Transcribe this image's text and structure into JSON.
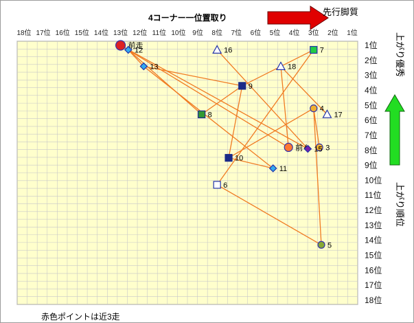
{
  "chart_data": {
    "type": "scatter",
    "title": "4コーナー一位置取り",
    "top_right_label": "先行脚質",
    "right_label_top": "上がり優秀",
    "right_label_bottom": "上がり順位",
    "footnote": "赤色ポイントは近3走",
    "x_ticks": [
      "18位",
      "17位",
      "16位",
      "15位",
      "14位",
      "13位",
      "12位",
      "11位",
      "10位",
      "9位",
      "8位",
      "7位",
      "6位",
      "5位",
      "4位",
      "3位",
      "2位",
      "1位"
    ],
    "y_ticks": [
      "1位",
      "2位",
      "3位",
      "4位",
      "5位",
      "6位",
      "7位",
      "8位",
      "9位",
      "10位",
      "11位",
      "12位",
      "13位",
      "14位",
      "15位",
      "16位",
      "17位",
      "18位"
    ],
    "xlim": [
      18,
      1
    ],
    "ylim": [
      1,
      18
    ],
    "grid": true,
    "points": [
      {
        "label": "前走",
        "x": 13.0,
        "y": 1.0,
        "shape": "circle",
        "fill": "#dd2222",
        "stroke": "#3333aa",
        "size": 7,
        "near3": true
      },
      {
        "label": "前々",
        "x": 4.3,
        "y": 7.8,
        "shape": "circle",
        "fill": "#ff7733",
        "stroke": "#3333aa",
        "size": 6,
        "near3": true
      },
      {
        "label": "3",
        "x": 2.7,
        "y": 7.8,
        "shape": "circle",
        "fill": "#f0b030",
        "stroke": "#3333aa",
        "size": 5
      },
      {
        "label": "4",
        "x": 3.0,
        "y": 5.2,
        "shape": "circle",
        "fill": "#f0b030",
        "stroke": "#3333aa",
        "size": 5
      },
      {
        "label": "5",
        "x": 2.6,
        "y": 14.3,
        "shape": "circle",
        "fill": "#88aa33",
        "stroke": "#3333aa",
        "size": 5
      },
      {
        "label": "6",
        "x": 8.0,
        "y": 10.3,
        "shape": "square",
        "fill": "#ffffff",
        "stroke": "#2233aa",
        "size": 5
      },
      {
        "label": "7",
        "x": 3.0,
        "y": 1.3,
        "shape": "square",
        "fill": "#22cc44",
        "stroke": "#2233aa",
        "size": 5
      },
      {
        "label": "8",
        "x": 8.8,
        "y": 5.6,
        "shape": "square",
        "fill": "#339933",
        "stroke": "#1a2a88",
        "size": 5
      },
      {
        "label": "9",
        "x": 6.7,
        "y": 3.7,
        "shape": "square",
        "fill": "#1a2a88",
        "stroke": "#1a2a88",
        "size": 5
      },
      {
        "label": "10",
        "x": 7.4,
        "y": 8.5,
        "shape": "square",
        "fill": "#1a2a88",
        "stroke": "#1a2a88",
        "size": 5
      },
      {
        "label": "11",
        "x": 5.1,
        "y": 9.2,
        "shape": "diamond",
        "fill": "#33aaee",
        "stroke": "#2233aa",
        "size": 5
      },
      {
        "label": "12",
        "x": 12.6,
        "y": 1.3,
        "shape": "diamond",
        "fill": "#33aaee",
        "stroke": "#2233aa",
        "size": 5
      },
      {
        "label": "13",
        "x": 11.8,
        "y": 2.4,
        "shape": "diamond",
        "fill": "#33aaee",
        "stroke": "#2233aa",
        "size": 5
      },
      {
        "label": "15",
        "x": 3.3,
        "y": 7.9,
        "shape": "diamond",
        "fill": "#7722aa",
        "stroke": "#2233aa",
        "size": 5
      },
      {
        "label": "16",
        "x": 8.0,
        "y": 1.3,
        "shape": "triangle",
        "fill": "#ffffff",
        "stroke": "#2233aa",
        "size": 6
      },
      {
        "label": "17",
        "x": 2.3,
        "y": 5.6,
        "shape": "triangle",
        "fill": "#ffffff",
        "stroke": "#2233aa",
        "size": 6
      },
      {
        "label": "18",
        "x": 4.7,
        "y": 2.4,
        "shape": "triangle",
        "fill": "#ffffff",
        "stroke": "#2233aa",
        "size": 6
      }
    ],
    "connections": [
      [
        "前走",
        "12"
      ],
      [
        "12",
        "13"
      ],
      [
        "前走",
        "前々"
      ],
      [
        "前走",
        "15"
      ],
      [
        "12",
        "8"
      ],
      [
        "13",
        "9"
      ],
      [
        "9",
        "8"
      ],
      [
        "9",
        "10"
      ],
      [
        "10",
        "11"
      ],
      [
        "6",
        "7"
      ],
      [
        "6",
        "5"
      ],
      [
        "4",
        "5"
      ],
      [
        "4",
        "3"
      ],
      [
        "4",
        "10"
      ],
      [
        "16",
        "15"
      ],
      [
        "18",
        "17"
      ],
      [
        "18",
        "前々"
      ],
      [
        "7",
        "9"
      ],
      [
        "13",
        "11"
      ]
    ],
    "line_color": "#f07a22",
    "accent_colors": {
      "arrow_red": "#e00000",
      "arrow_green": "#22dd22",
      "plot_bg": "#ffffcc",
      "grid": "#c8c8c8"
    }
  }
}
